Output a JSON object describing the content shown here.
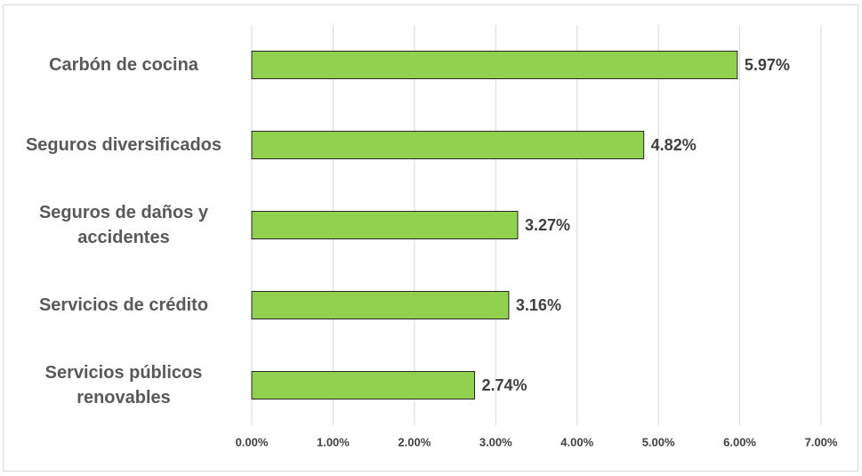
{
  "chart_data": {
    "type": "barh",
    "categories": [
      "Carbón de cocina",
      "Seguros diversificados",
      "Seguros de daños y accidentes",
      "Servicios de crédito",
      "Servicios públicos renovables"
    ],
    "values": [
      5.97,
      4.82,
      3.27,
      3.16,
      2.74
    ],
    "value_labels": [
      "5.97%",
      "4.82%",
      "3.27%",
      "3.16%",
      "2.74%"
    ],
    "color": "#92d050",
    "xlim": [
      0,
      7
    ],
    "xticks": [
      {
        "value": 0,
        "label": "0.00%"
      },
      {
        "value": 1,
        "label": "1.00%"
      },
      {
        "value": 2,
        "label": "2.00%"
      },
      {
        "value": 3,
        "label": "3.00%"
      },
      {
        "value": 4,
        "label": "4.00%"
      },
      {
        "value": 5,
        "label": "5.00%"
      },
      {
        "value": 6,
        "label": "6.00%"
      },
      {
        "value": 7,
        "label": "7.00%"
      }
    ],
    "grid": true
  }
}
